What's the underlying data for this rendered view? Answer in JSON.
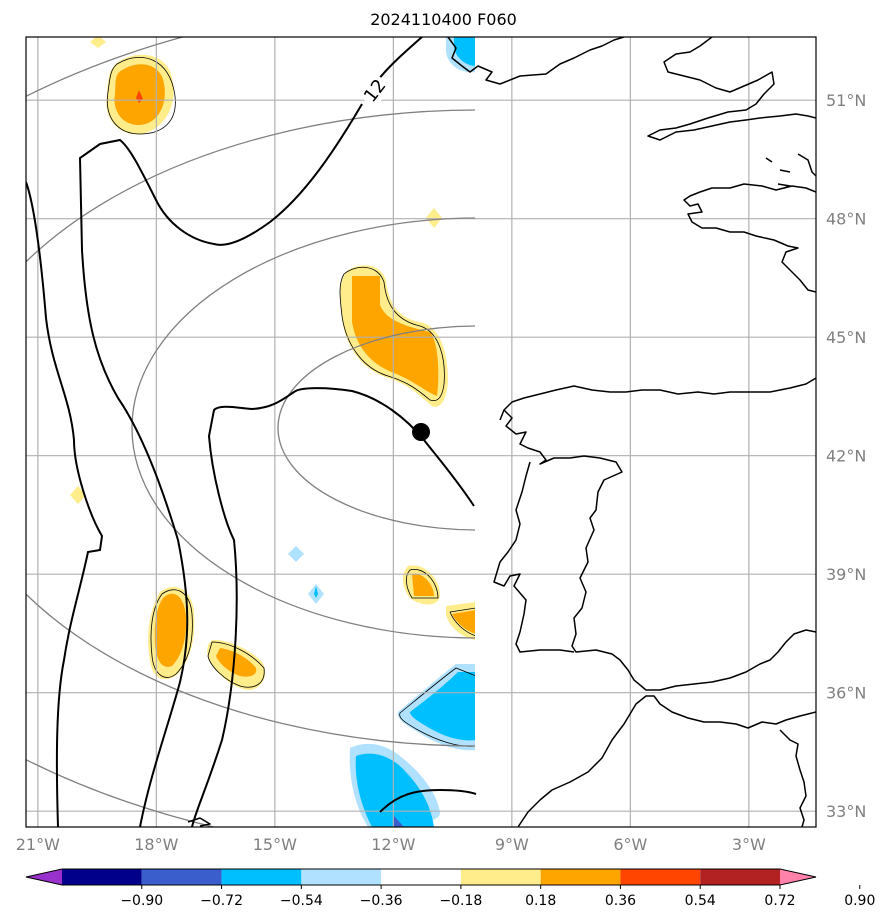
{
  "title": "2024110400 F060",
  "map": {
    "lon_range": [
      -21.3,
      -1.3
    ],
    "lat_range": [
      32.6,
      52.6
    ],
    "lon_ticks": [
      {
        "value": -21,
        "label": "21°W"
      },
      {
        "value": -18,
        "label": "18°W"
      },
      {
        "value": -15,
        "label": "15°W"
      },
      {
        "value": -12,
        "label": "12°W"
      },
      {
        "value": -9,
        "label": "9°W"
      },
      {
        "value": -6,
        "label": "6°W"
      },
      {
        "value": -3,
        "label": "3°W"
      }
    ],
    "lat_ticks": [
      {
        "value": 51,
        "label": "51°N"
      },
      {
        "value": 48,
        "label": "48°N"
      },
      {
        "value": 45,
        "label": "45°N"
      },
      {
        "value": 42,
        "label": "42°N"
      },
      {
        "value": 39,
        "label": "39°N"
      },
      {
        "value": 36,
        "label": "36°N"
      },
      {
        "value": 33,
        "label": "33°N"
      }
    ],
    "grid": true,
    "contour_label": "12",
    "storm_center": {
      "lon": -11.3,
      "lat": 42.6
    }
  },
  "colorbar": {
    "levels": [
      "−0.90",
      "−0.72",
      "−0.54",
      "−0.36",
      "−0.18",
      "0.18",
      "0.36",
      "0.54",
      "0.72",
      "0.90"
    ],
    "colors": [
      "#9932CC",
      "#00008B",
      "#3A5FCD",
      "#00BFFF",
      "#B0E2FF",
      "#FFFFFF",
      "#FFEC8B",
      "#FFA500",
      "#FF4500",
      "#B22222",
      "#FF82AB"
    ]
  }
}
